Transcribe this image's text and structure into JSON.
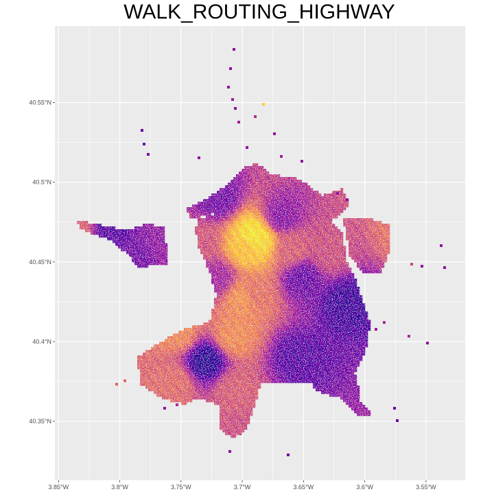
{
  "title": "WALK_ROUTING_HIGHWAY",
  "chart_data": {
    "type": "heatmap",
    "title": "WALK_ROUTING_HIGHWAY",
    "xlabel": "",
    "ylabel": "",
    "x_ticks": [
      "3.85°W",
      "3.8°W",
      "3.75°W",
      "3.7°W",
      "3.65°W",
      "3.6°W",
      "3.55°W"
    ],
    "y_ticks": [
      "40.35°N",
      "40.4°N",
      "40.45°N",
      "40.5°N",
      "40.55°N"
    ],
    "x_tick_values": [
      -3.85,
      -3.8,
      -3.75,
      -3.7,
      -3.65,
      -3.6,
      -3.55
    ],
    "y_tick_values": [
      40.35,
      40.4,
      40.45,
      40.5,
      40.55
    ],
    "xlim": [
      -3.853,
      -3.518
    ],
    "ylim": [
      40.313,
      40.598
    ],
    "grid": true,
    "legend": "none",
    "colors": {
      "panel_background": "#ebebeb",
      "grid_major": "#ffffff",
      "palette": [
        "#0d0887",
        "#5c01a6",
        "#9c179e",
        "#cc4778",
        "#ed7953",
        "#fdb42f",
        "#f0f921"
      ]
    },
    "cells": [
      {
        "lon": -3.691,
        "lat": 40.467,
        "value": 0.95
      },
      {
        "lon": -3.686,
        "lat": 40.463,
        "value": 0.92
      },
      {
        "lon": -3.697,
        "lat": 40.458,
        "value": 0.85
      },
      {
        "lon": -3.7,
        "lat": 40.427,
        "value": 0.72
      },
      {
        "lon": -3.707,
        "lat": 40.403,
        "value": 0.7
      },
      {
        "lon": -3.69,
        "lat": 40.43,
        "value": 0.62
      },
      {
        "lon": -3.66,
        "lat": 40.458,
        "value": 0.55
      },
      {
        "lon": -3.63,
        "lat": 40.455,
        "value": 0.5
      },
      {
        "lon": -3.735,
        "lat": 40.462,
        "value": 0.52
      },
      {
        "lon": -3.752,
        "lat": 40.405,
        "value": 0.68
      },
      {
        "lon": -3.756,
        "lat": 40.374,
        "value": 0.6
      },
      {
        "lon": -3.705,
        "lat": 40.37,
        "value": 0.55
      },
      {
        "lon": -3.7,
        "lat": 40.345,
        "value": 0.5
      },
      {
        "lon": -3.765,
        "lat": 40.46,
        "value": 0.3
      },
      {
        "lon": -3.72,
        "lat": 40.44,
        "value": 0.35
      },
      {
        "lon": -3.72,
        "lat": 40.49,
        "value": 0.22
      },
      {
        "lon": -3.668,
        "lat": 40.478,
        "value": 0.28
      },
      {
        "lon": -3.65,
        "lat": 40.44,
        "value": 0.2
      },
      {
        "lon": -3.615,
        "lat": 40.425,
        "value": 0.1
      },
      {
        "lon": -3.655,
        "lat": 40.39,
        "value": 0.15
      },
      {
        "lon": -3.73,
        "lat": 40.388,
        "value": 0.05
      },
      {
        "lon": -3.835,
        "lat": 40.47,
        "value": 0.55
      },
      {
        "lon": -3.808,
        "lat": 40.47,
        "value": 0.15
      },
      {
        "lon": -3.785,
        "lat": 40.452,
        "value": 0.22
      },
      {
        "lon": -3.565,
        "lat": 40.47,
        "value": 0.62
      }
    ]
  }
}
